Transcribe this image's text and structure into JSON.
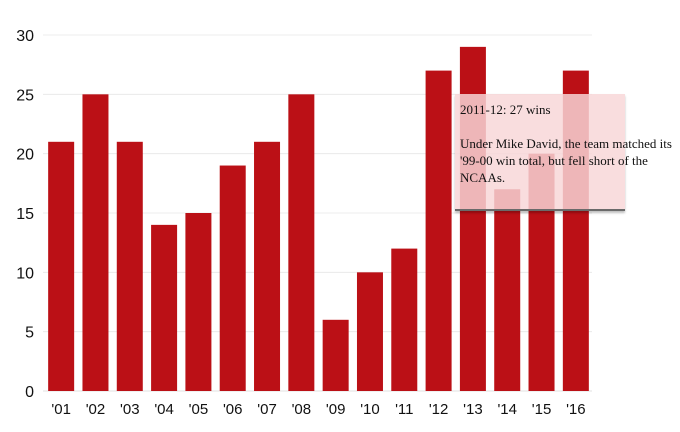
{
  "chart_data": {
    "type": "bar",
    "categories": [
      "'01",
      "'02",
      "'03",
      "'04",
      "'05",
      "'06",
      "'07",
      "'08",
      "'09",
      "'10",
      "'11",
      "'12",
      "'13",
      "'14",
      "'15",
      "'16"
    ],
    "values": [
      21,
      25,
      21,
      14,
      15,
      19,
      21,
      25,
      6,
      10,
      12,
      27,
      29,
      17,
      20,
      27
    ],
    "ylim": [
      0,
      30
    ],
    "yticks": [
      0,
      5,
      10,
      15,
      20,
      25,
      30
    ],
    "grid": true,
    "colors": {
      "bar": "#bb1016",
      "grid": "#e6e6e6"
    },
    "tooltip": {
      "title": "2011-12: 27 wins",
      "body": "Under Mike David, the team matched its '99-00 win total, but fell short of the NCAAs."
    }
  }
}
